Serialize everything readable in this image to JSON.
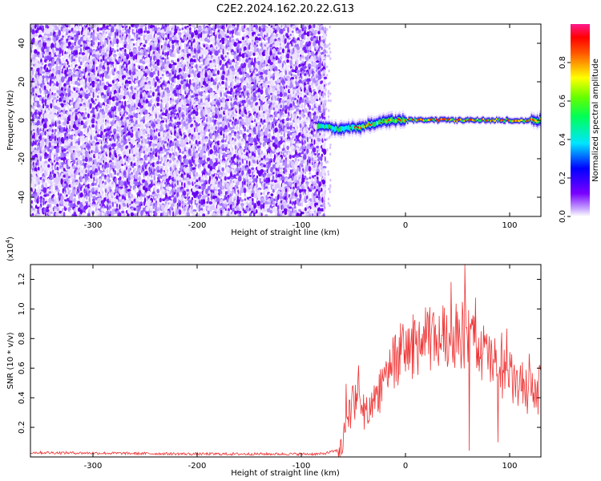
{
  "title": "C2E2.2024.162.20.22.G13",
  "chart_data": [
    {
      "type": "heatmap",
      "xlabel": "Height of straight line (km)",
      "ylabel": "Frequency (Hz)",
      "xlim": [
        -360,
        130
      ],
      "ylim": [
        -50,
        50
      ],
      "xticks": [
        -300,
        -200,
        -100,
        0,
        100
      ],
      "yticks": [
        -40,
        -20,
        0,
        20,
        40
      ],
      "colorbar": {
        "label": "Normalized spectral amplitude",
        "range": [
          0,
          1
        ],
        "ticks": [
          "0.0",
          "0.2",
          "0.4",
          "0.6",
          "0.8"
        ]
      },
      "noise_region_x": [
        -360,
        -78
      ],
      "signal_trace": [
        {
          "x": -85,
          "y": -3
        },
        {
          "x": -75,
          "y": -3
        },
        {
          "x": -65,
          "y": -5
        },
        {
          "x": -55,
          "y": -4
        },
        {
          "x": -45,
          "y": -4
        },
        {
          "x": -35,
          "y": -2
        },
        {
          "x": -25,
          "y": -1
        },
        {
          "x": -15,
          "y": 0
        },
        {
          "x": 0,
          "y": 0
        },
        {
          "x": 20,
          "y": 0
        },
        {
          "x": 40,
          "y": 0
        },
        {
          "x": 60,
          "y": 0
        },
        {
          "x": 80,
          "y": 0
        },
        {
          "x": 100,
          "y": 0
        },
        {
          "x": 130,
          "y": 0
        }
      ]
    },
    {
      "type": "line",
      "xlabel": "Height of straight line (km)",
      "ylabel": "SNR (10 * v/v)",
      "exponent_label": "(x10",
      "exponent_power": "4",
      "exponent_close": ")",
      "xlim": [
        -360,
        130
      ],
      "ylim": [
        0,
        1.3
      ],
      "xticks": [
        -300,
        -200,
        -100,
        0,
        100
      ],
      "yticks": [
        "0.2",
        "0.4",
        "0.6",
        "0.8",
        "1.0",
        "1.2"
      ],
      "color": "#ee3333",
      "series_envelope": [
        {
          "x": -360,
          "y": 0.03
        },
        {
          "x": -200,
          "y": 0.02
        },
        {
          "x": -80,
          "y": 0.02
        },
        {
          "x": -62,
          "y": 0.05
        },
        {
          "x": -55,
          "y": 0.3
        },
        {
          "x": -45,
          "y": 0.4
        },
        {
          "x": -35,
          "y": 0.25
        },
        {
          "x": -25,
          "y": 0.45
        },
        {
          "x": -15,
          "y": 0.65
        },
        {
          "x": 0,
          "y": 0.72
        },
        {
          "x": 15,
          "y": 0.78
        },
        {
          "x": 30,
          "y": 0.8
        },
        {
          "x": 45,
          "y": 0.84
        },
        {
          "x": 60,
          "y": 0.82
        },
        {
          "x": 75,
          "y": 0.7
        },
        {
          "x": 90,
          "y": 0.6
        },
        {
          "x": 105,
          "y": 0.5
        },
        {
          "x": 118,
          "y": 0.45
        },
        {
          "x": 130,
          "y": 0.45
        }
      ],
      "peak": {
        "x": 57,
        "y": 1.3
      }
    }
  ]
}
